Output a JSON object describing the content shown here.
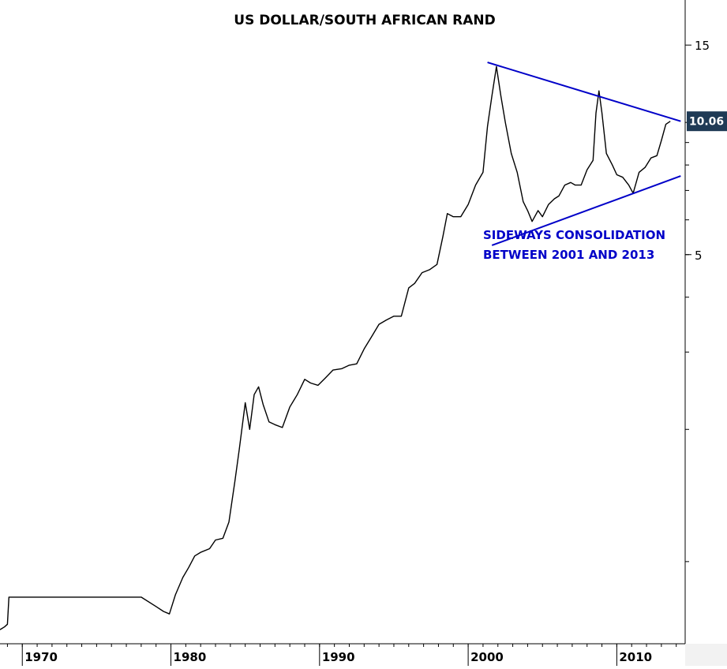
{
  "chart_data": {
    "type": "line",
    "title": "US DOLLAR/SOUTH AFRICAN RAND",
    "y_scale": "log",
    "ylim": [
      0.65,
      19
    ],
    "xlim": [
      1968.5,
      2014.6
    ],
    "y_ticks": [
      {
        "value": 15,
        "label": "15"
      },
      {
        "value": 5,
        "label": "5"
      }
    ],
    "x_ticks": [
      {
        "value": 1970,
        "label": "1970"
      },
      {
        "value": 1980,
        "label": "1980"
      },
      {
        "value": 1990,
        "label": "1990"
      },
      {
        "value": 2000,
        "label": "2000"
      },
      {
        "value": 2010,
        "label": "2010"
      }
    ],
    "last_value_label": "10.06",
    "annotation": [
      "SIDEWAYS CONSOLIDATION",
      "BETWEEN 2001 AND 2013"
    ],
    "series": [
      {
        "x": [
          1968.5,
          1968.8,
          1969.0,
          1969.1,
          1969.5,
          1970.0,
          1971.0,
          1972.0,
          1973.0,
          1974.0,
          1975.0,
          1976.0,
          1977.0,
          1978.0,
          1979.0,
          1979.5,
          1979.9,
          1980.3,
          1980.8,
          1981.2,
          1981.6,
          1982.0,
          1982.6,
          1983.0,
          1983.5,
          1983.9,
          1984.3,
          1984.6,
          1985.0,
          1985.3,
          1985.6,
          1985.9,
          1986.2,
          1986.6,
          1987.0,
          1987.5,
          1988.0,
          1988.5,
          1989.0,
          1989.4,
          1989.9,
          1990.4,
          1990.9,
          1991.5,
          1992.0,
          1992.5,
          1993.0,
          1993.5,
          1994.0,
          1994.5,
          1995.0,
          1995.5,
          1996.0,
          1996.4,
          1996.9,
          1997.4,
          1997.9,
          1998.3,
          1998.6,
          1999.0,
          1999.5,
          2000.0,
          2000.5,
          2001.0,
          2001.3,
          2001.6,
          2001.9,
          2002.2,
          2002.5,
          2002.9,
          2003.3,
          2003.7,
          2004.0,
          2004.3,
          2004.7,
          2005.0,
          2005.4,
          2005.8,
          2006.1,
          2006.5,
          2006.9,
          2007.2,
          2007.6,
          2008.0,
          2008.4,
          2008.6,
          2008.8,
          2009.0,
          2009.3,
          2009.7,
          2010.0,
          2010.4,
          2010.8,
          2011.1,
          2011.5,
          2011.9,
          2012.3,
          2012.7,
          2013.0,
          2013.3,
          2013.6
        ],
        "y": [
          0.7,
          0.71,
          0.72,
          0.83,
          0.83,
          0.83,
          0.83,
          0.83,
          0.83,
          0.83,
          0.83,
          0.83,
          0.83,
          0.83,
          0.79,
          0.77,
          0.76,
          0.84,
          0.92,
          0.97,
          1.03,
          1.05,
          1.07,
          1.12,
          1.13,
          1.23,
          1.52,
          1.8,
          2.3,
          2.0,
          2.4,
          2.5,
          2.28,
          2.08,
          2.05,
          2.02,
          2.25,
          2.4,
          2.6,
          2.55,
          2.52,
          2.62,
          2.73,
          2.75,
          2.8,
          2.82,
          3.05,
          3.25,
          3.47,
          3.55,
          3.62,
          3.62,
          4.2,
          4.3,
          4.55,
          4.62,
          4.75,
          5.5,
          6.2,
          6.1,
          6.1,
          6.5,
          7.2,
          7.7,
          9.8,
          11.5,
          13.4,
          11.5,
          10.0,
          8.5,
          7.7,
          6.6,
          6.3,
          5.95,
          6.3,
          6.1,
          6.5,
          6.7,
          6.8,
          7.2,
          7.3,
          7.2,
          7.2,
          7.8,
          8.2,
          10.5,
          11.8,
          10.5,
          8.5,
          8.0,
          7.6,
          7.5,
          7.2,
          6.9,
          7.7,
          7.9,
          8.3,
          8.4,
          9.1,
          9.9,
          10.06
        ]
      }
    ],
    "trendlines": [
      {
        "x": [
          2001.3,
          2014.3
        ],
        "y": [
          13.7,
          10.06
        ]
      },
      {
        "x": [
          2001.6,
          2014.3
        ],
        "y": [
          5.25,
          7.55
        ]
      }
    ],
    "colors": {
      "series": "#000000",
      "trendline": "#0000c8",
      "annotation": "#0000c8",
      "axis": "#000000",
      "last_value_bg": "#1f3a55",
      "last_value_text": "#ffffff"
    }
  }
}
